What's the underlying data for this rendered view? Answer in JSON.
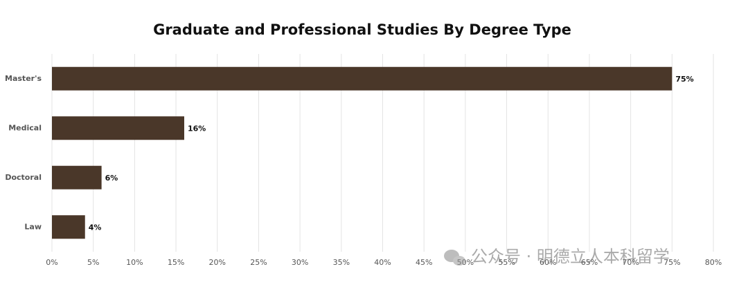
{
  "chart_data": {
    "type": "bar",
    "orientation": "horizontal",
    "title": "Graduate and Professional Studies By Degree Type",
    "categories": [
      "Master's",
      "Medical",
      "Doctoral",
      "Law"
    ],
    "values": [
      75,
      16,
      6,
      4
    ],
    "value_labels": [
      "75%",
      "16%",
      "6%",
      "4%"
    ],
    "color": "#4a3729",
    "xlim": [
      0,
      80
    ],
    "xticks": [
      {
        "value": 0,
        "label": "0%"
      },
      {
        "value": 5,
        "label": "5%"
      },
      {
        "value": 10,
        "label": "10%"
      },
      {
        "value": 15,
        "label": "15%"
      },
      {
        "value": 20,
        "label": "20%"
      },
      {
        "value": 25,
        "label": "25%"
      },
      {
        "value": 30,
        "label": "30%"
      },
      {
        "value": 35,
        "label": "35%"
      },
      {
        "value": 40,
        "label": "40%"
      },
      {
        "value": 45,
        "label": "45%"
      },
      {
        "value": 50,
        "label": "50%"
      },
      {
        "value": 55,
        "label": "55%"
      },
      {
        "value": 60,
        "label": "60%"
      },
      {
        "value": 65,
        "label": "65%"
      },
      {
        "value": 70,
        "label": "70%"
      },
      {
        "value": 75,
        "label": "75%"
      },
      {
        "value": 80,
        "label": "80%"
      }
    ],
    "grid": true
  },
  "watermark": "公众号 · 明德立人本科留学"
}
